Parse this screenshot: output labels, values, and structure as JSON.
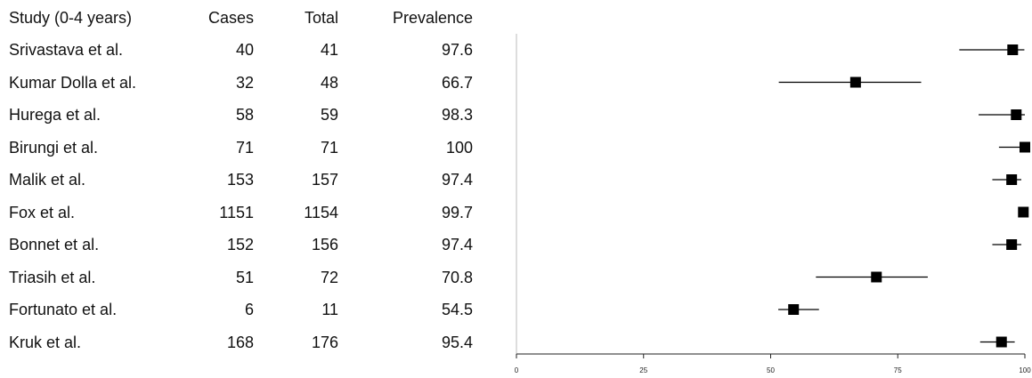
{
  "columns": {
    "study": "Study (0-4 years)",
    "cases": "Cases",
    "total": "Total",
    "prevalence": "Prevalence"
  },
  "rows": [
    {
      "study": "Srivastava et al.",
      "cases": "40",
      "total": "41",
      "prevalence": "97.6"
    },
    {
      "study": "Kumar Dolla et al.",
      "cases": "32",
      "total": "48",
      "prevalence": "66.7"
    },
    {
      "study": "Hurega et al.",
      "cases": "58",
      "total": "59",
      "prevalence": "98.3"
    },
    {
      "study": "Birungi et al.",
      "cases": "71",
      "total": "71",
      "prevalence": "100"
    },
    {
      "study": "Malik et al.",
      "cases": "153",
      "total": "157",
      "prevalence": "97.4"
    },
    {
      "study": "Fox et al.",
      "cases": "1151",
      "total": "1154",
      "prevalence": "99.7"
    },
    {
      "study": "Bonnet et al.",
      "cases": "152",
      "total": "156",
      "prevalence": "97.4"
    },
    {
      "study": "Triasih et al.",
      "cases": "51",
      "total": "72",
      "prevalence": "70.8"
    },
    {
      "study": "Fortunato et al.",
      "cases": "6",
      "total": "11",
      "prevalence": "54.5"
    },
    {
      "study": "Kruk et al.",
      "cases": "168",
      "total": "176",
      "prevalence": "95.4"
    }
  ],
  "chart_data": {
    "type": "scatter",
    "title": "",
    "xlabel": "",
    "ylabel": "",
    "xlim": [
      0,
      100
    ],
    "xticks": [
      "0",
      "25",
      "50",
      "75",
      "100"
    ],
    "grid": false,
    "points": [
      {
        "study": "Srivastava et al.",
        "estimate": 97.6,
        "lower": 87.1,
        "upper": 99.9
      },
      {
        "study": "Kumar Dolla et al.",
        "estimate": 66.7,
        "lower": 51.6,
        "upper": 79.6
      },
      {
        "study": "Hurega et al.",
        "estimate": 98.3,
        "lower": 90.9,
        "upper": 100
      },
      {
        "study": "Birungi et al.",
        "estimate": 100,
        "lower": 94.9,
        "upper": 100
      },
      {
        "study": "Malik et al.",
        "estimate": 97.4,
        "lower": 93.6,
        "upper": 99.3
      },
      {
        "study": "Fox et al.",
        "estimate": 99.7,
        "lower": 99.2,
        "upper": 100
      },
      {
        "study": "Bonnet et al.",
        "estimate": 97.4,
        "lower": 93.6,
        "upper": 99.3
      },
      {
        "study": "Triasih et al.",
        "estimate": 70.8,
        "lower": 58.9,
        "upper": 80.9
      },
      {
        "study": "Fortunato et al.",
        "estimate": 54.5,
        "lower": 51.5,
        "upper": 59.5
      },
      {
        "study": "Kruk et al.",
        "estimate": 95.4,
        "lower": 91.2,
        "upper": 98.0
      }
    ]
  }
}
